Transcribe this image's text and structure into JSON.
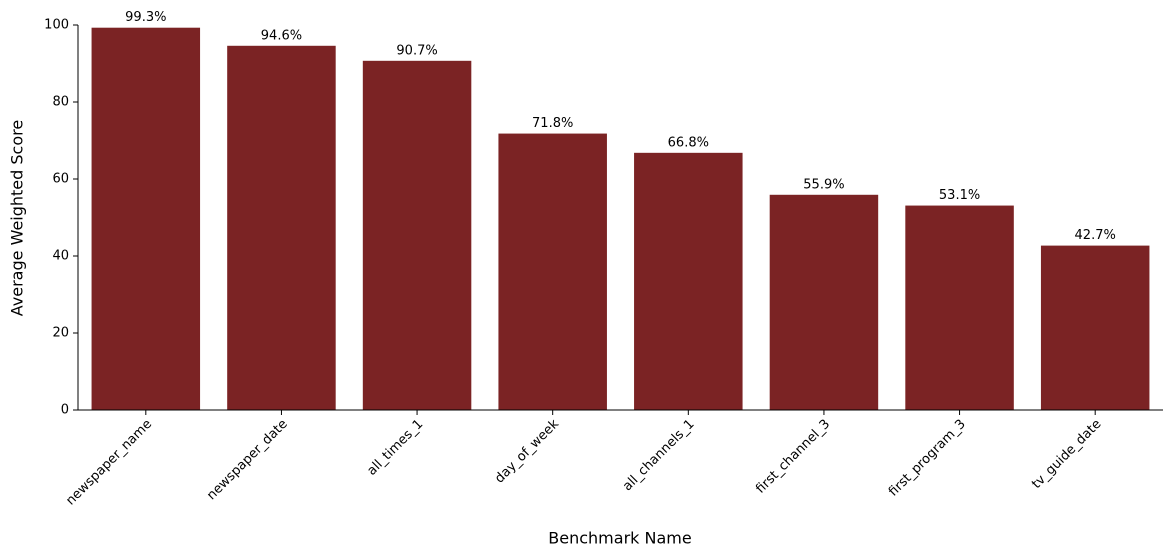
{
  "chart_data": {
    "type": "bar",
    "xlabel": "Benchmark Name",
    "ylabel": "Average Weighted Score",
    "categories": [
      "newspaper_name",
      "newspaper_date",
      "all_times_1",
      "day_of_week",
      "all_channels_1",
      "first_channel_3",
      "first_program_3",
      "tv_guide_date"
    ],
    "values": [
      99.3,
      94.6,
      90.7,
      71.8,
      66.8,
      55.9,
      53.1,
      42.7
    ],
    "value_labels": [
      "99.3%",
      "94.6%",
      "90.7%",
      "71.8%",
      "66.8%",
      "55.9%",
      "53.1%",
      "42.7%"
    ],
    "color": "#7b2324",
    "ylim": [
      0,
      100
    ],
    "yticks": [
      0,
      20,
      40,
      60,
      80,
      100
    ],
    "grid": false
  }
}
